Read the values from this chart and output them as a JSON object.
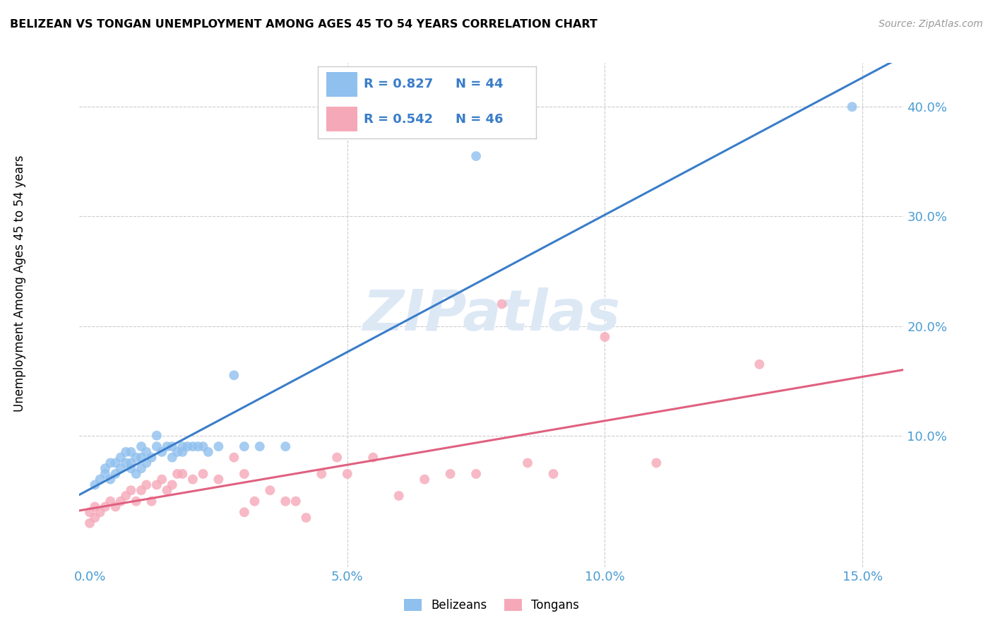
{
  "title": "BELIZEAN VS TONGAN UNEMPLOYMENT AMONG AGES 45 TO 54 YEARS CORRELATION CHART",
  "source": "Source: ZipAtlas.com",
  "ylabel": "Unemployment Among Ages 45 to 54 years",
  "xlabel_ticks": [
    "0.0%",
    "5.0%",
    "10.0%",
    "15.0%"
  ],
  "xlabel_vals": [
    0.0,
    0.05,
    0.1,
    0.15
  ],
  "ylabel_ticks": [
    "10.0%",
    "20.0%",
    "30.0%",
    "40.0%"
  ],
  "ylabel_vals": [
    0.1,
    0.2,
    0.3,
    0.4
  ],
  "xlim": [
    -0.002,
    0.158
  ],
  "ylim": [
    -0.02,
    0.44
  ],
  "belizean_R": 0.827,
  "belizean_N": 44,
  "tongan_R": 0.542,
  "tongan_N": 46,
  "belizean_color": "#90c0ee",
  "tongan_color": "#f5a8b8",
  "belizean_line_color": "#3a7dc9",
  "tongan_line_color": "#e06080",
  "watermark_color": "#dde8f5",
  "background_color": "#ffffff",
  "grid_color": "#cccccc",
  "tick_color": "#4b9cd3",
  "belizean_x": [
    0.001,
    0.002,
    0.003,
    0.003,
    0.004,
    0.004,
    0.005,
    0.005,
    0.006,
    0.006,
    0.007,
    0.007,
    0.008,
    0.008,
    0.008,
    0.009,
    0.009,
    0.01,
    0.01,
    0.01,
    0.011,
    0.011,
    0.012,
    0.013,
    0.013,
    0.014,
    0.015,
    0.016,
    0.016,
    0.017,
    0.018,
    0.018,
    0.019,
    0.02,
    0.021,
    0.022,
    0.023,
    0.025,
    0.028,
    0.03,
    0.033,
    0.038,
    0.075,
    0.148
  ],
  "belizean_y": [
    0.055,
    0.06,
    0.065,
    0.07,
    0.06,
    0.075,
    0.065,
    0.075,
    0.07,
    0.08,
    0.075,
    0.085,
    0.07,
    0.075,
    0.085,
    0.065,
    0.08,
    0.07,
    0.08,
    0.09,
    0.075,
    0.085,
    0.08,
    0.09,
    0.1,
    0.085,
    0.09,
    0.08,
    0.09,
    0.085,
    0.085,
    0.09,
    0.09,
    0.09,
    0.09,
    0.09,
    0.085,
    0.09,
    0.155,
    0.09,
    0.09,
    0.09,
    0.355,
    0.4
  ],
  "tongan_x": [
    0.0,
    0.0,
    0.001,
    0.001,
    0.002,
    0.003,
    0.004,
    0.005,
    0.006,
    0.007,
    0.008,
    0.009,
    0.01,
    0.011,
    0.012,
    0.013,
    0.014,
    0.015,
    0.016,
    0.017,
    0.018,
    0.02,
    0.022,
    0.025,
    0.028,
    0.03,
    0.03,
    0.032,
    0.035,
    0.038,
    0.04,
    0.042,
    0.045,
    0.048,
    0.05,
    0.055,
    0.06,
    0.065,
    0.07,
    0.075,
    0.08,
    0.085,
    0.09,
    0.1,
    0.11,
    0.13
  ],
  "tongan_y": [
    0.02,
    0.03,
    0.025,
    0.035,
    0.03,
    0.035,
    0.04,
    0.035,
    0.04,
    0.045,
    0.05,
    0.04,
    0.05,
    0.055,
    0.04,
    0.055,
    0.06,
    0.05,
    0.055,
    0.065,
    0.065,
    0.06,
    0.065,
    0.06,
    0.08,
    0.03,
    0.065,
    0.04,
    0.05,
    0.04,
    0.04,
    0.025,
    0.065,
    0.08,
    0.065,
    0.08,
    0.045,
    0.06,
    0.065,
    0.065,
    0.22,
    0.075,
    0.065,
    0.19,
    0.075,
    0.165
  ]
}
